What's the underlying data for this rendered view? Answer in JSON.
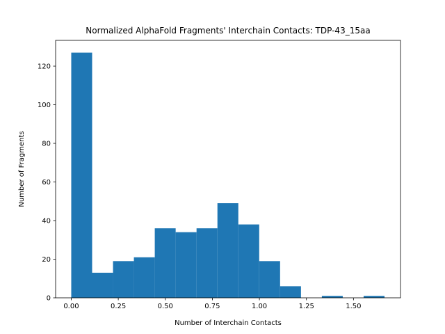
{
  "chart_data": {
    "type": "histogram",
    "title": "Normalized AlphaFold Fragments' Interchain Contacts: TDP-43_15aa",
    "xlabel": "Number of Interchain Contacts",
    "ylabel": "Number of Fragments",
    "bar_color": "#1f77b4",
    "xlim": [
      -0.083,
      1.75
    ],
    "ylim": [
      0,
      133.35
    ],
    "xticks": [
      0.0,
      0.25,
      0.5,
      0.75,
      1.0,
      1.25,
      1.5
    ],
    "xtick_labels": [
      "0.00",
      "0.25",
      "0.50",
      "0.75",
      "1.00",
      "1.25",
      "1.50"
    ],
    "yticks": [
      0,
      20,
      40,
      60,
      80,
      100,
      120
    ],
    "ytick_labels": [
      "0",
      "20",
      "40",
      "60",
      "80",
      "100",
      "120"
    ],
    "bin_edges": [
      0.0,
      0.111,
      0.222,
      0.333,
      0.444,
      0.555,
      0.666,
      0.777,
      0.888,
      0.999,
      1.11,
      1.221,
      1.332,
      1.443,
      1.554,
      1.665
    ],
    "counts": [
      127,
      13,
      19,
      21,
      36,
      34,
      36,
      49,
      38,
      19,
      6,
      0,
      1,
      0,
      1
    ]
  }
}
